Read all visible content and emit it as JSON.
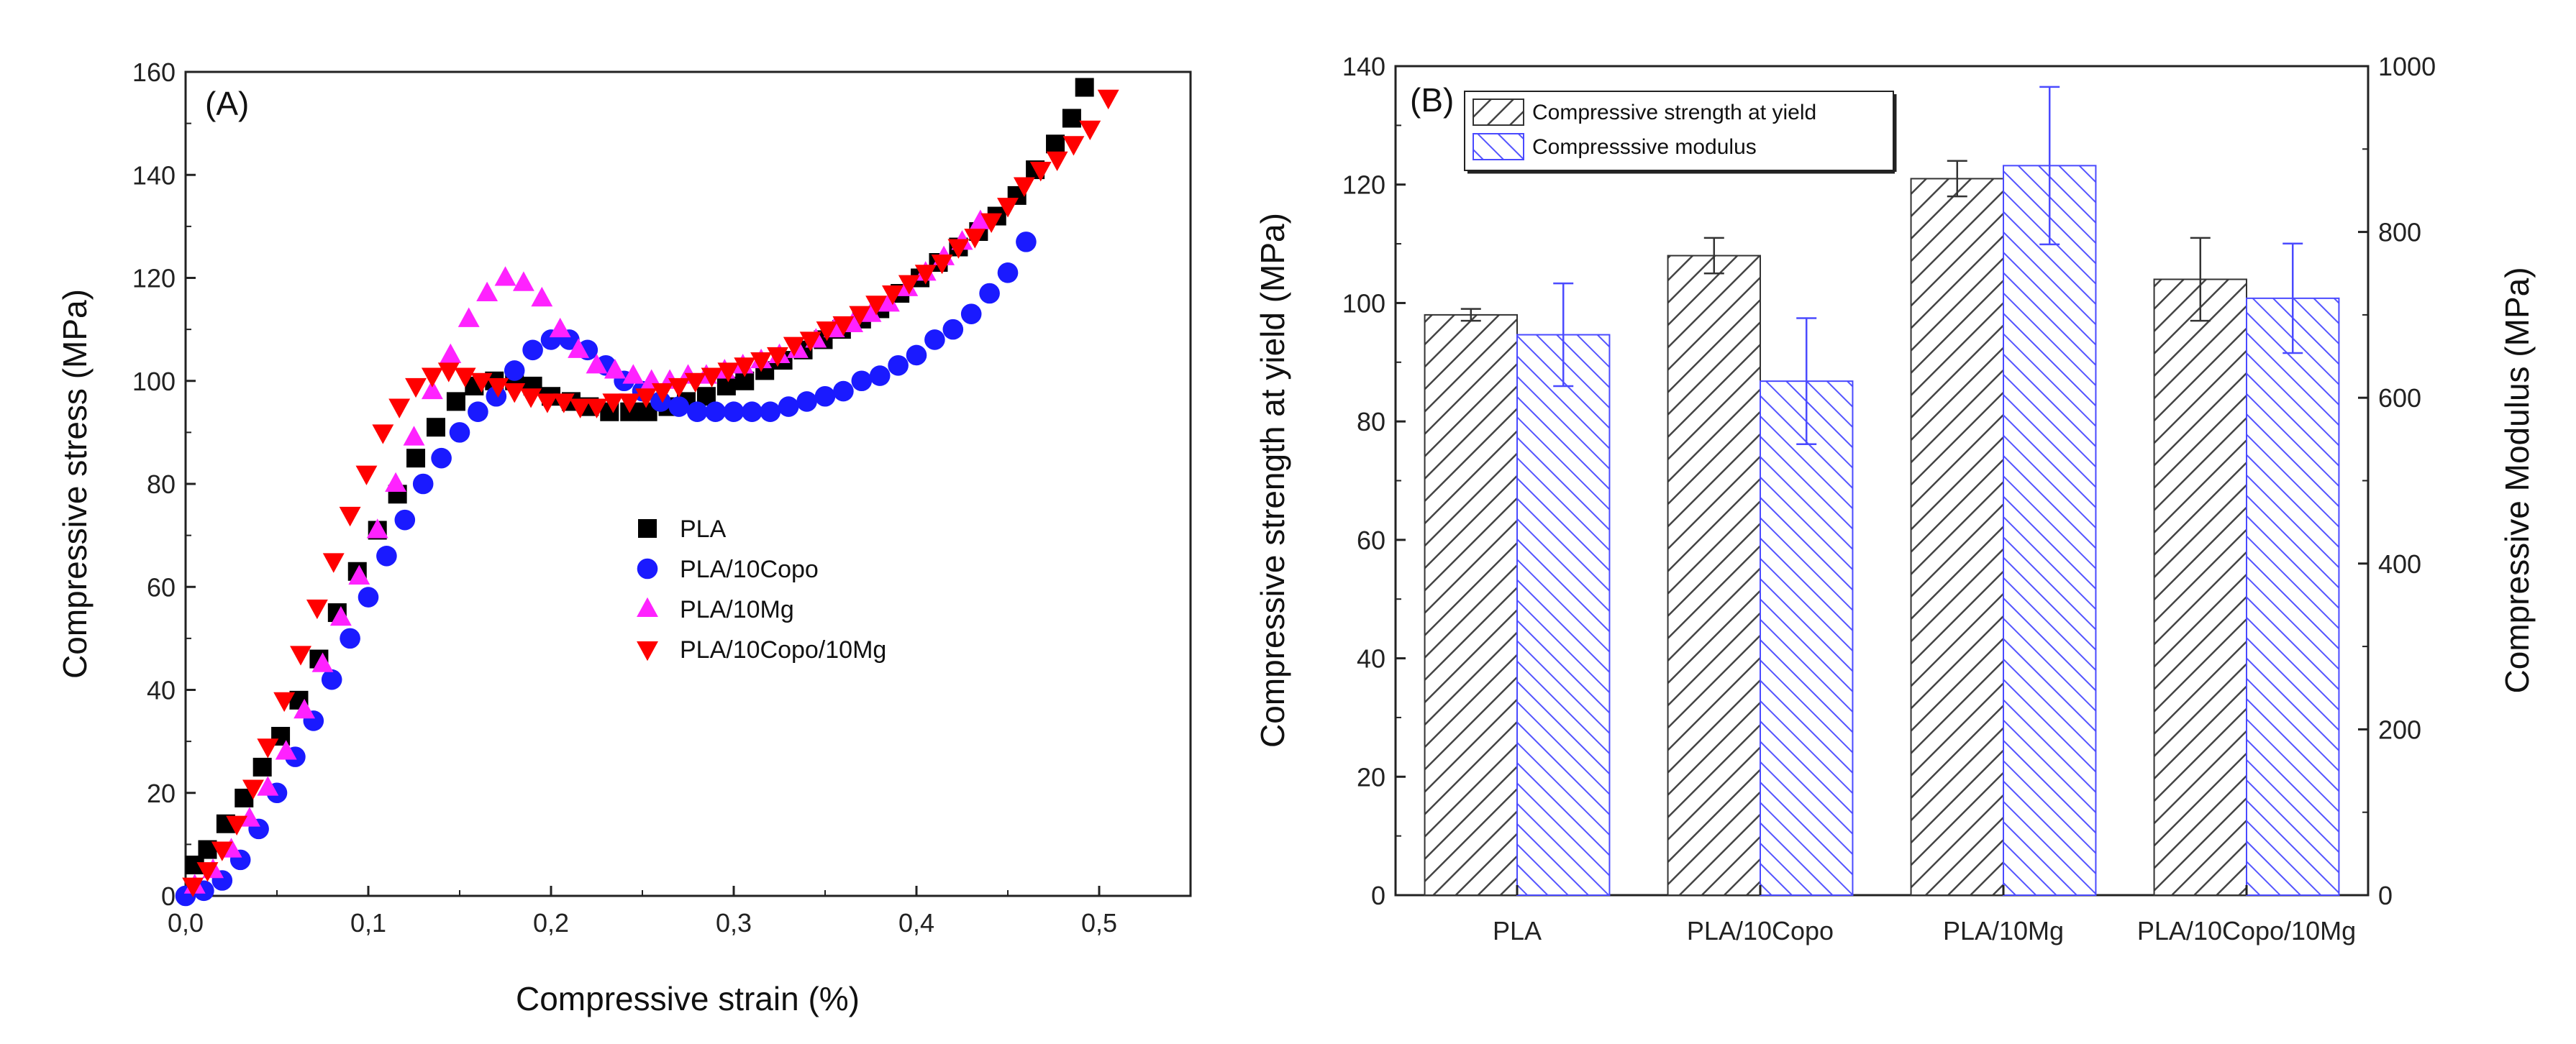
{
  "chart_data": [
    {
      "type": "scatter",
      "panel_label": "(A)",
      "xlabel": "Compressive strain (%)",
      "ylabel": "Compressive stress (MPa)",
      "xlim": [
        0,
        0.55
      ],
      "ylim": [
        0,
        160
      ],
      "x_ticks": [
        "0,0",
        "0,1",
        "0,2",
        "0,3",
        "0,4",
        "0,5"
      ],
      "y_ticks": [
        "0",
        "20",
        "40",
        "60",
        "80",
        "100",
        "120",
        "140",
        "160"
      ],
      "legend_position": "center-right",
      "series": [
        {
          "name": "PLA",
          "marker": "square",
          "color": "#000000",
          "points": [
            [
              0.005,
              6
            ],
            [
              0.012,
              9
            ],
            [
              0.022,
              14
            ],
            [
              0.032,
              19
            ],
            [
              0.042,
              25
            ],
            [
              0.052,
              31
            ],
            [
              0.062,
              38
            ],
            [
              0.073,
              46
            ],
            [
              0.083,
              55
            ],
            [
              0.094,
              63
            ],
            [
              0.105,
              71
            ],
            [
              0.116,
              78
            ],
            [
              0.126,
              85
            ],
            [
              0.137,
              91
            ],
            [
              0.148,
              96
            ],
            [
              0.158,
              99
            ],
            [
              0.169,
              100
            ],
            [
              0.18,
              100
            ],
            [
              0.19,
              99
            ],
            [
              0.2,
              97
            ],
            [
              0.211,
              96
            ],
            [
              0.221,
              95
            ],
            [
              0.232,
              94
            ],
            [
              0.243,
              94
            ],
            [
              0.253,
              94
            ],
            [
              0.264,
              95
            ],
            [
              0.274,
              96
            ],
            [
              0.285,
              97
            ],
            [
              0.296,
              99
            ],
            [
              0.306,
              100
            ],
            [
              0.317,
              102
            ],
            [
              0.327,
              104
            ],
            [
              0.338,
              106
            ],
            [
              0.349,
              108
            ],
            [
              0.359,
              110
            ],
            [
              0.37,
              112
            ],
            [
              0.38,
              114
            ],
            [
              0.391,
              117
            ],
            [
              0.402,
              120
            ],
            [
              0.412,
              123
            ],
            [
              0.423,
              126
            ],
            [
              0.434,
              129
            ],
            [
              0.444,
              132
            ],
            [
              0.455,
              136
            ],
            [
              0.465,
              141
            ],
            [
              0.476,
              146
            ],
            [
              0.485,
              151
            ],
            [
              0.492,
              157
            ]
          ]
        },
        {
          "name": "PLA/10Copo",
          "marker": "circle",
          "color": "#1a1aff",
          "points": [
            [
              0.0,
              0
            ],
            [
              0.01,
              1
            ],
            [
              0.02,
              3
            ],
            [
              0.03,
              7
            ],
            [
              0.04,
              13
            ],
            [
              0.05,
              20
            ],
            [
              0.06,
              27
            ],
            [
              0.07,
              34
            ],
            [
              0.08,
              42
            ],
            [
              0.09,
              50
            ],
            [
              0.1,
              58
            ],
            [
              0.11,
              66
            ],
            [
              0.12,
              73
            ],
            [
              0.13,
              80
            ],
            [
              0.14,
              85
            ],
            [
              0.15,
              90
            ],
            [
              0.16,
              94
            ],
            [
              0.17,
              97
            ],
            [
              0.18,
              102
            ],
            [
              0.19,
              106
            ],
            [
              0.2,
              108
            ],
            [
              0.21,
              108
            ],
            [
              0.22,
              106
            ],
            [
              0.23,
              103
            ],
            [
              0.24,
              100
            ],
            [
              0.25,
              98
            ],
            [
              0.26,
              96
            ],
            [
              0.27,
              95
            ],
            [
              0.28,
              94
            ],
            [
              0.29,
              94
            ],
            [
              0.3,
              94
            ],
            [
              0.31,
              94
            ],
            [
              0.32,
              94
            ],
            [
              0.33,
              95
            ],
            [
              0.34,
              96
            ],
            [
              0.35,
              97
            ],
            [
              0.36,
              98
            ],
            [
              0.37,
              100
            ],
            [
              0.38,
              101
            ],
            [
              0.39,
              103
            ],
            [
              0.4,
              105
            ],
            [
              0.41,
              108
            ],
            [
              0.42,
              110
            ],
            [
              0.43,
              113
            ],
            [
              0.44,
              117
            ],
            [
              0.45,
              121
            ],
            [
              0.46,
              127
            ]
          ]
        },
        {
          "name": "PLA/10Mg",
          "marker": "triangle-up",
          "color": "#ff22ff",
          "points": [
            [
              0.005,
              2
            ],
            [
              0.015,
              5
            ],
            [
              0.025,
              9
            ],
            [
              0.035,
              15
            ],
            [
              0.045,
              21
            ],
            [
              0.055,
              28
            ],
            [
              0.065,
              36
            ],
            [
              0.075,
              45
            ],
            [
              0.085,
              54
            ],
            [
              0.095,
              62
            ],
            [
              0.105,
              71
            ],
            [
              0.115,
              80
            ],
            [
              0.125,
              89
            ],
            [
              0.135,
              98
            ],
            [
              0.145,
              105
            ],
            [
              0.155,
              112
            ],
            [
              0.165,
              117
            ],
            [
              0.175,
              120
            ],
            [
              0.185,
              119
            ],
            [
              0.195,
              116
            ],
            [
              0.205,
              110
            ],
            [
              0.215,
              106
            ],
            [
              0.225,
              103
            ],
            [
              0.235,
              102
            ],
            [
              0.245,
              101
            ],
            [
              0.255,
              100
            ],
            [
              0.265,
              100
            ],
            [
              0.275,
              101
            ],
            [
              0.285,
              101
            ],
            [
              0.295,
              102
            ],
            [
              0.305,
              103
            ],
            [
              0.315,
              104
            ],
            [
              0.325,
              105
            ],
            [
              0.335,
              106
            ],
            [
              0.345,
              108
            ],
            [
              0.355,
              110
            ],
            [
              0.365,
              111
            ],
            [
              0.375,
              113
            ],
            [
              0.385,
              115
            ],
            [
              0.395,
              118
            ],
            [
              0.405,
              121
            ],
            [
              0.415,
              124
            ],
            [
              0.425,
              127
            ],
            [
              0.435,
              131
            ]
          ]
        },
        {
          "name": "PLA/10Copo/10Mg",
          "marker": "triangle-down",
          "color": "#ff0000",
          "points": [
            [
              0.004,
              2
            ],
            [
              0.012,
              5
            ],
            [
              0.02,
              9
            ],
            [
              0.028,
              14
            ],
            [
              0.037,
              21
            ],
            [
              0.045,
              29
            ],
            [
              0.054,
              38
            ],
            [
              0.063,
              47
            ],
            [
              0.072,
              56
            ],
            [
              0.081,
              65
            ],
            [
              0.09,
              74
            ],
            [
              0.099,
              82
            ],
            [
              0.108,
              90
            ],
            [
              0.117,
              95
            ],
            [
              0.126,
              99
            ],
            [
              0.135,
              101
            ],
            [
              0.144,
              102
            ],
            [
              0.153,
              101
            ],
            [
              0.162,
              100
            ],
            [
              0.171,
              99
            ],
            [
              0.18,
              98
            ],
            [
              0.189,
              97
            ],
            [
              0.198,
              96
            ],
            [
              0.207,
              96
            ],
            [
              0.216,
              95
            ],
            [
              0.225,
              95
            ],
            [
              0.234,
              96
            ],
            [
              0.243,
              96
            ],
            [
              0.252,
              97
            ],
            [
              0.261,
              98
            ],
            [
              0.27,
              99
            ],
            [
              0.279,
              100
            ],
            [
              0.288,
              101
            ],
            [
              0.297,
              102
            ],
            [
              0.306,
              103
            ],
            [
              0.315,
              104
            ],
            [
              0.324,
              105
            ],
            [
              0.333,
              107
            ],
            [
              0.342,
              108
            ],
            [
              0.351,
              110
            ],
            [
              0.36,
              111
            ],
            [
              0.369,
              113
            ],
            [
              0.378,
              115
            ],
            [
              0.387,
              117
            ],
            [
              0.396,
              119
            ],
            [
              0.405,
              121
            ],
            [
              0.414,
              123
            ],
            [
              0.423,
              126
            ],
            [
              0.432,
              128
            ],
            [
              0.441,
              131
            ],
            [
              0.45,
              134
            ],
            [
              0.459,
              138
            ],
            [
              0.468,
              141
            ],
            [
              0.477,
              143
            ],
            [
              0.486,
              146
            ],
            [
              0.495,
              149
            ],
            [
              0.505,
              155
            ]
          ]
        }
      ]
    },
    {
      "type": "bar",
      "panel_label": "(B)",
      "categories": [
        "PLA",
        "PLA/10Copo",
        "PLA/10Mg",
        "PLA/10Copo/10Mg"
      ],
      "ylabel": "Compressive strength at yield (MPa)",
      "y2label": "Compressive Modulus (MPa)",
      "ylim": [
        0,
        140
      ],
      "y2lim": [
        0,
        1000
      ],
      "y_ticks": [
        "0",
        "20",
        "40",
        "60",
        "80",
        "100",
        "120",
        "140"
      ],
      "y2_ticks": [
        "0",
        "200",
        "400",
        "600",
        "800",
        "1000"
      ],
      "legend_position": "top-left",
      "series": [
        {
          "name": "Compressive strength at yield",
          "axis": "left",
          "color": "#333333",
          "values": [
            98,
            108,
            121,
            104
          ],
          "errors": [
            1,
            3,
            3,
            7
          ]
        },
        {
          "name": "Compresssive modulus",
          "axis": "right",
          "color": "#4a4aff",
          "values": [
            676,
            620,
            880,
            720
          ],
          "errors": [
            62,
            76,
            95,
            66
          ]
        }
      ]
    }
  ]
}
